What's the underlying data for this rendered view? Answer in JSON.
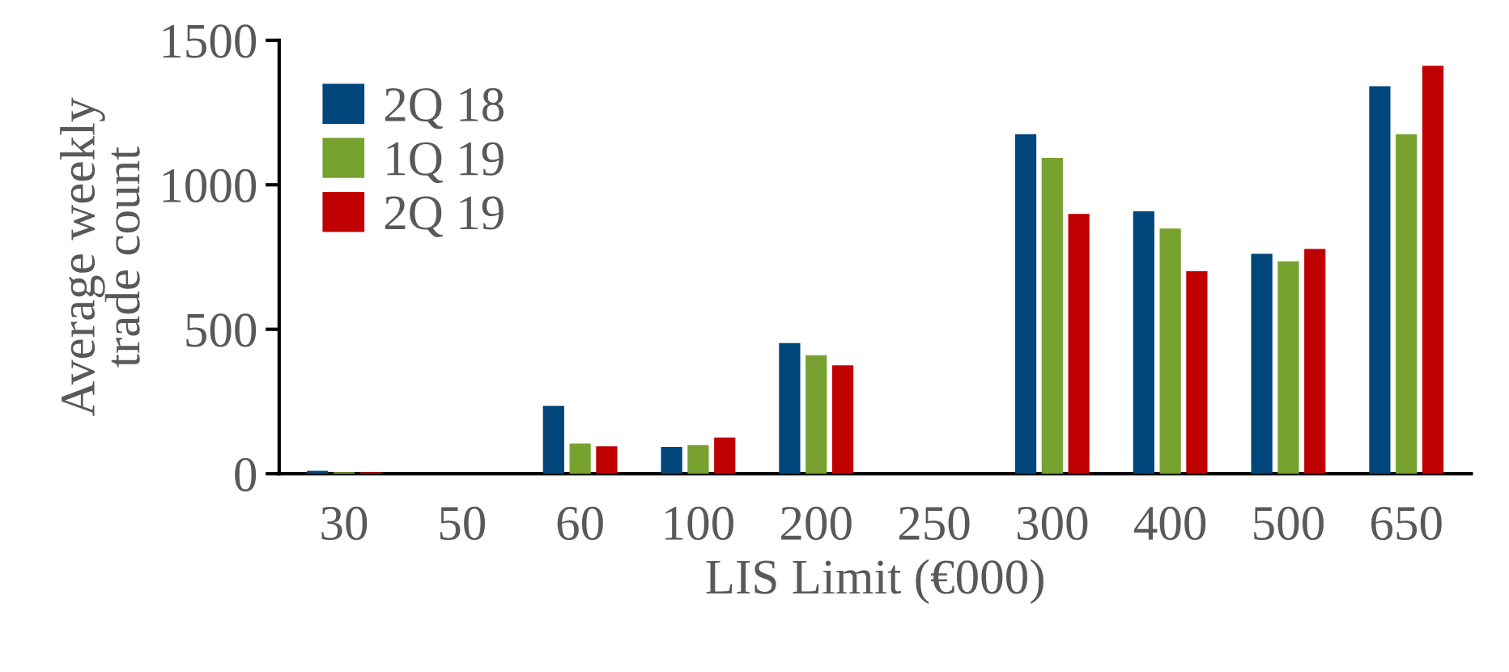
{
  "chart_data": {
    "type": "bar",
    "xlabel": "LIS Limit (€000)",
    "ylabel": "Average weekly\ntrade count",
    "categories": [
      "30",
      "50",
      "60",
      "100",
      "200",
      "250",
      "300",
      "400",
      "500",
      "650"
    ],
    "series": [
      {
        "name": "2Q 18",
        "color": "#00467a",
        "values": [
          10,
          null,
          235,
          93,
          452,
          null,
          1175,
          908,
          761,
          1341
        ]
      },
      {
        "name": "1Q 19",
        "color": "#78a22f",
        "values": [
          5,
          null,
          105,
          99,
          410,
          null,
          1093,
          849,
          735,
          1175
        ]
      },
      {
        "name": "2Q 19",
        "color": "#c00000",
        "values": [
          5,
          null,
          95,
          125,
          375,
          null,
          899,
          701,
          778,
          1412
        ]
      }
    ],
    "ylim": [
      0,
      1500
    ],
    "yticks": [
      0,
      500,
      1000,
      1500
    ],
    "grid": false,
    "legend": "top left"
  }
}
